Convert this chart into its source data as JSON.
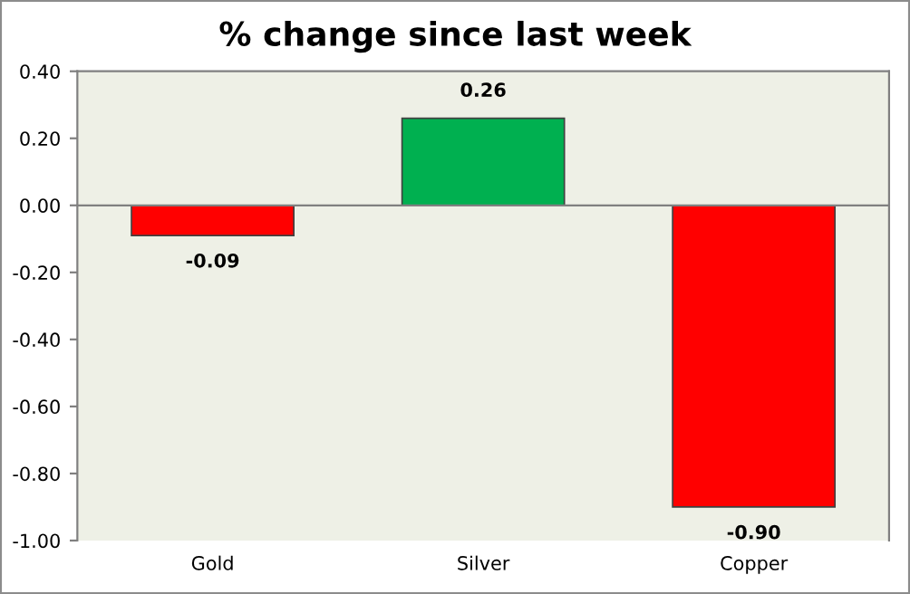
{
  "chart_data": {
    "type": "bar",
    "title": "% change since last week",
    "categories": [
      "Gold",
      "Silver",
      "Copper"
    ],
    "values": [
      -0.09,
      0.26,
      -0.9
    ],
    "colors": [
      "#ff0000",
      "#00b050",
      "#ff0000"
    ],
    "value_labels": [
      "-0.09",
      "0.26",
      "-0.90"
    ],
    "ylim": [
      -1.0,
      0.4
    ],
    "yticks": [
      {
        "value": -1.0,
        "label": "-1.00"
      },
      {
        "value": -0.8,
        "label": "-0.80"
      },
      {
        "value": -0.6,
        "label": "-0.60"
      },
      {
        "value": -0.4,
        "label": "-0.40"
      },
      {
        "value": -0.2,
        "label": "-0.20"
      },
      {
        "value": 0,
        "label": "0.00"
      },
      {
        "value": 0.2,
        "label": "0.20"
      },
      {
        "value": 0.4,
        "label": "0.40"
      }
    ],
    "legend": false
  }
}
